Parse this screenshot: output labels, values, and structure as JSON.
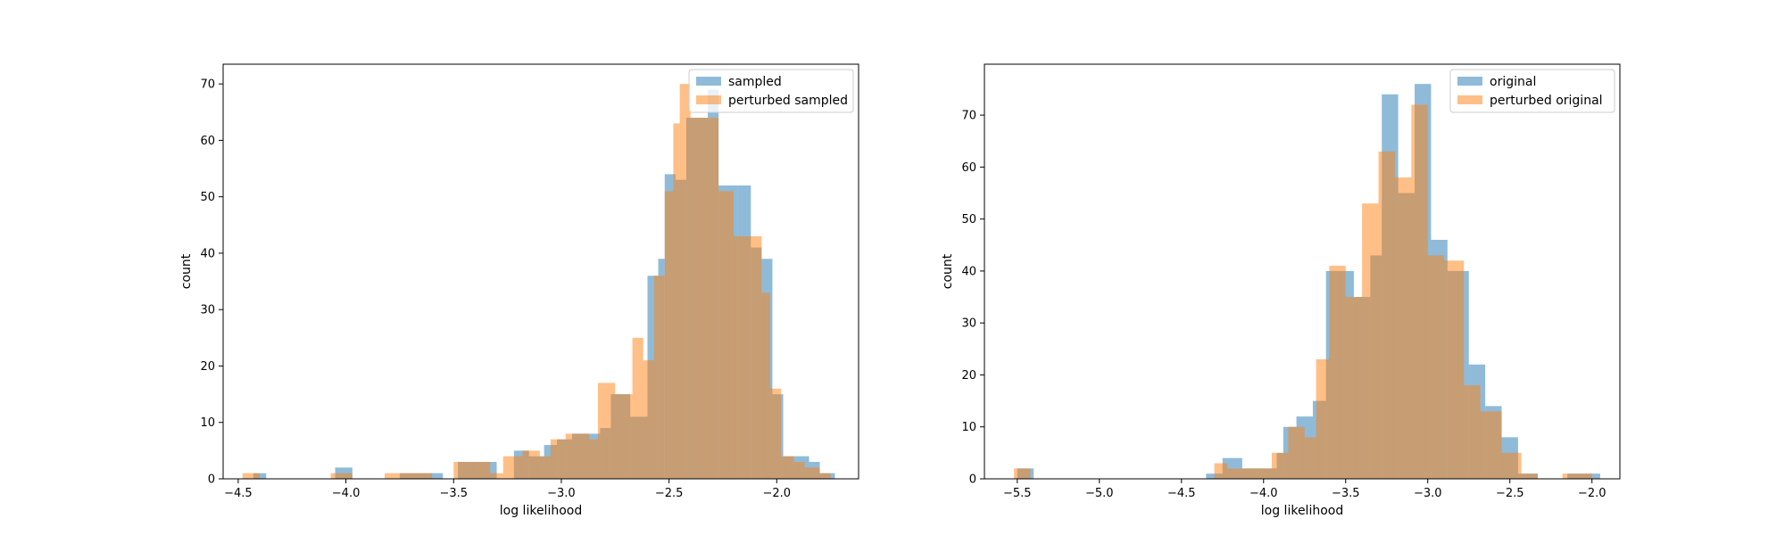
{
  "colors": {
    "series1": "#1f77b4",
    "series2": "#ff7f0e",
    "bar_opacity": 0.5
  },
  "chart_data": [
    {
      "type": "histogram",
      "xlabel": "log likelihood",
      "ylabel": "count",
      "xlim": [
        -4.57,
        -1.62
      ],
      "ylim": [
        0,
        73.5
      ],
      "xticks": [
        -4.5,
        -4.0,
        -3.5,
        -3.0,
        -2.5,
        -2.0
      ],
      "xtick_labels": [
        "−4.5",
        "−4.0",
        "−3.5",
        "−3.0",
        "−2.5",
        "−2.0"
      ],
      "yticks": [
        0,
        10,
        20,
        30,
        40,
        50,
        60,
        70
      ],
      "ytick_labels": [
        "0",
        "10",
        "20",
        "30",
        "40",
        "50",
        "60",
        "70"
      ],
      "legend_position": "upper right",
      "series": [
        {
          "name": "sampled",
          "color": "#1f77b4",
          "bins": [
            [
              -4.43,
              -4.37,
              1
            ],
            [
              -4.05,
              -3.97,
              2
            ],
            [
              -3.75,
              -3.62,
              1
            ],
            [
              -3.62,
              -3.55,
              1
            ],
            [
              -3.48,
              -3.38,
              3
            ],
            [
              -3.38,
              -3.3,
              3
            ],
            [
              -3.22,
              -3.15,
              5
            ],
            [
              -3.15,
              -3.08,
              4
            ],
            [
              -3.08,
              -3.02,
              6
            ],
            [
              -3.02,
              -2.95,
              7
            ],
            [
              -2.95,
              -2.82,
              8
            ],
            [
              -2.82,
              -2.77,
              9
            ],
            [
              -2.77,
              -2.68,
              15
            ],
            [
              -2.68,
              -2.6,
              11
            ],
            [
              -2.6,
              -2.55,
              36
            ],
            [
              -2.55,
              -2.52,
              39
            ],
            [
              -2.52,
              -2.47,
              54
            ],
            [
              -2.47,
              -2.42,
              53
            ],
            [
              -2.42,
              -2.32,
              64
            ],
            [
              -2.32,
              -2.27,
              69
            ],
            [
              -2.27,
              -2.18,
              52
            ],
            [
              -2.18,
              -2.12,
              52
            ],
            [
              -2.12,
              -2.07,
              41
            ],
            [
              -2.07,
              -2.02,
              39
            ],
            [
              -2.02,
              -1.97,
              15
            ],
            [
              -1.97,
              -1.93,
              4
            ],
            [
              -1.93,
              -1.85,
              4
            ],
            [
              -1.85,
              -1.8,
              3
            ],
            [
              -1.8,
              -1.73,
              1
            ]
          ]
        },
        {
          "name": "perturbed sampled",
          "color": "#ff7f0e",
          "bins": [
            [
              -4.48,
              -4.4,
              1
            ],
            [
              -4.07,
              -3.97,
              1
            ],
            [
              -3.82,
              -3.6,
              1
            ],
            [
              -3.5,
              -3.33,
              3
            ],
            [
              -3.33,
              -3.27,
              1
            ],
            [
              -3.27,
              -3.18,
              4
            ],
            [
              -3.18,
              -3.1,
              5
            ],
            [
              -3.1,
              -3.05,
              4
            ],
            [
              -3.05,
              -2.98,
              7
            ],
            [
              -2.98,
              -2.87,
              8
            ],
            [
              -2.87,
              -2.83,
              7
            ],
            [
              -2.83,
              -2.75,
              17
            ],
            [
              -2.75,
              -2.67,
              15
            ],
            [
              -2.67,
              -2.62,
              25
            ],
            [
              -2.62,
              -2.57,
              21
            ],
            [
              -2.57,
              -2.52,
              36
            ],
            [
              -2.52,
              -2.48,
              51
            ],
            [
              -2.48,
              -2.45,
              63
            ],
            [
              -2.45,
              -2.4,
              70
            ],
            [
              -2.4,
              -2.35,
              64
            ],
            [
              -2.35,
              -2.27,
              64
            ],
            [
              -2.27,
              -2.2,
              51
            ],
            [
              -2.2,
              -2.12,
              43
            ],
            [
              -2.12,
              -2.07,
              43
            ],
            [
              -2.07,
              -2.03,
              33
            ],
            [
              -2.03,
              -1.98,
              16
            ],
            [
              -1.98,
              -1.92,
              4
            ],
            [
              -1.92,
              -1.87,
              3
            ],
            [
              -1.87,
              -1.8,
              2
            ],
            [
              -1.8,
              -1.75,
              1
            ]
          ]
        }
      ]
    },
    {
      "type": "histogram",
      "xlabel": "log likelihood",
      "ylabel": "count",
      "xlim": [
        -5.7,
        -1.83
      ],
      "ylim": [
        0,
        79.8
      ],
      "xticks": [
        -5.5,
        -5.0,
        -4.5,
        -4.0,
        -3.5,
        -3.0,
        -2.5,
        -2.0
      ],
      "xtick_labels": [
        "−5.5",
        "−5.0",
        "−4.5",
        "−4.0",
        "−3.5",
        "−3.0",
        "−2.5",
        "−2.0"
      ],
      "yticks": [
        0,
        10,
        20,
        30,
        40,
        50,
        60,
        70
      ],
      "ytick_labels": [
        "0",
        "10",
        "20",
        "30",
        "40",
        "50",
        "60",
        "70"
      ],
      "legend_position": "upper right",
      "series": [
        {
          "name": "original",
          "color": "#1f77b4",
          "bins": [
            [
              -5.5,
              -5.4,
              2
            ],
            [
              -4.35,
              -4.25,
              1
            ],
            [
              -4.25,
              -4.13,
              4
            ],
            [
              -4.13,
              -3.92,
              2
            ],
            [
              -3.92,
              -3.88,
              5
            ],
            [
              -3.88,
              -3.8,
              10
            ],
            [
              -3.8,
              -3.7,
              12
            ],
            [
              -3.7,
              -3.62,
              15
            ],
            [
              -3.62,
              -3.55,
              40
            ],
            [
              -3.55,
              -3.45,
              40
            ],
            [
              -3.45,
              -3.35,
              35
            ],
            [
              -3.35,
              -3.28,
              43
            ],
            [
              -3.28,
              -3.18,
              74
            ],
            [
              -3.18,
              -3.08,
              55
            ],
            [
              -3.08,
              -2.98,
              76
            ],
            [
              -2.98,
              -2.88,
              46
            ],
            [
              -2.88,
              -2.75,
              40
            ],
            [
              -2.75,
              -2.65,
              22
            ],
            [
              -2.65,
              -2.55,
              14
            ],
            [
              -2.55,
              -2.45,
              8
            ],
            [
              -2.45,
              -2.33,
              1
            ],
            [
              -2.15,
              -1.95,
              1
            ]
          ]
        },
        {
          "name": "perturbed original",
          "color": "#ff7f0e",
          "bins": [
            [
              -5.52,
              -5.42,
              2
            ],
            [
              -4.3,
              -4.22,
              3
            ],
            [
              -4.22,
              -3.95,
              2
            ],
            [
              -3.95,
              -3.85,
              5
            ],
            [
              -3.85,
              -3.75,
              10
            ],
            [
              -3.75,
              -3.68,
              8
            ],
            [
              -3.68,
              -3.6,
              23
            ],
            [
              -3.6,
              -3.5,
              41
            ],
            [
              -3.5,
              -3.4,
              35
            ],
            [
              -3.4,
              -3.3,
              53
            ],
            [
              -3.3,
              -3.2,
              63
            ],
            [
              -3.2,
              -3.1,
              58
            ],
            [
              -3.1,
              -3.0,
              72
            ],
            [
              -3.0,
              -2.9,
              43
            ],
            [
              -2.9,
              -2.78,
              42
            ],
            [
              -2.78,
              -2.68,
              18
            ],
            [
              -2.68,
              -2.55,
              13
            ],
            [
              -2.55,
              -2.43,
              5
            ],
            [
              -2.43,
              -2.33,
              1
            ],
            [
              -2.18,
              -2.0,
              1
            ]
          ]
        }
      ]
    }
  ]
}
